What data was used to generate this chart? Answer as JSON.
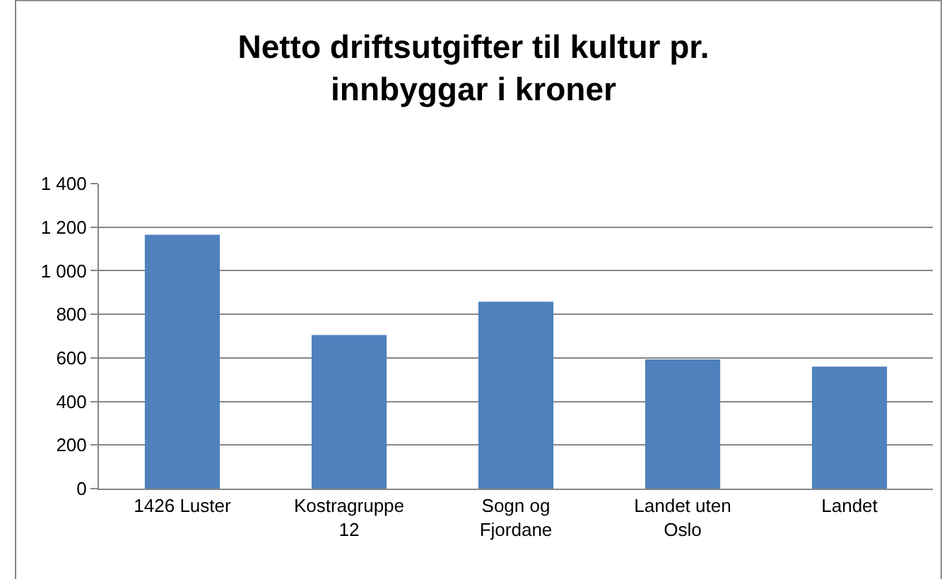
{
  "chart_data": {
    "type": "bar",
    "title": "Netto driftsutgifter til kultur pr. innbyggar i kroner",
    "categories": [
      "1426 Luster",
      "Kostragruppe 12",
      "Sogn og Fjordane",
      "Landet uten Oslo",
      "Landet"
    ],
    "values": [
      1165,
      705,
      858,
      593,
      560
    ],
    "color": "#4f81bd",
    "ylim": [
      0,
      1400
    ],
    "yticks": [
      0,
      200,
      400,
      600,
      800,
      {
        "value": 1000,
        "label": "1 000"
      },
      {
        "value": 1200,
        "label": "1 200"
      },
      {
        "value": 1400,
        "label": "1 400"
      }
    ],
    "grid": "y"
  }
}
